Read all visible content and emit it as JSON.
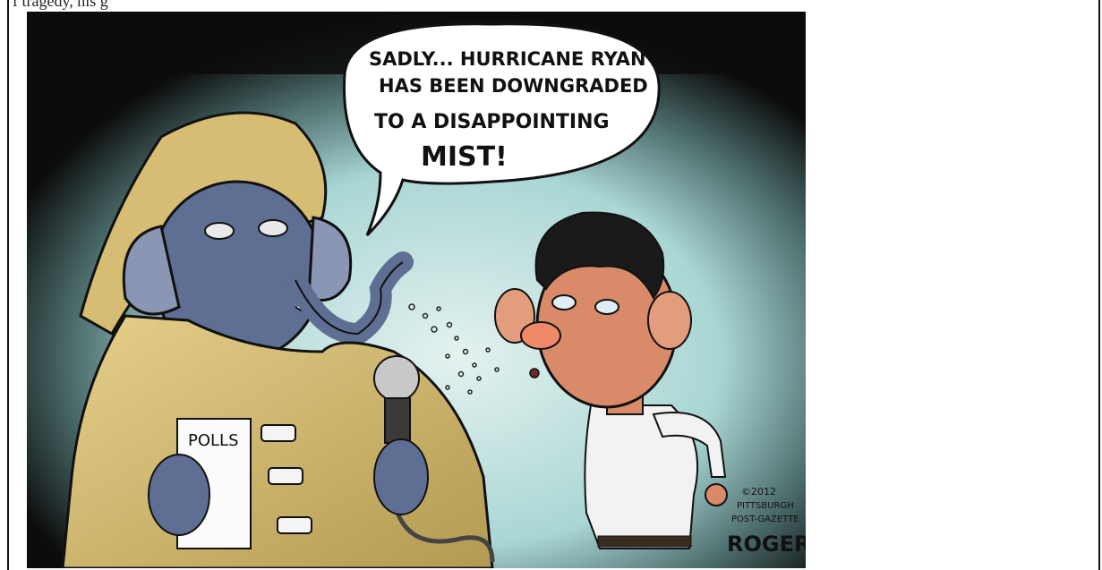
{
  "caption": "f tragedy, his g",
  "speech_bubble": {
    "lines": [
      "SADLY... HURRICANE RYAN",
      "HAS BEEN DOWNGRADED",
      "TO A DISAPPOINTING",
      "MIST!"
    ]
  },
  "sign": {
    "label": "POLLS"
  },
  "credit": {
    "copyright": "©2012",
    "publisher_line1": "PITTSBURGH",
    "publisher_line2": "POST-GAZETTE",
    "signature": "ROGERS"
  },
  "colors": {
    "sky_top": "#0c0c0c",
    "sky_glow": "#bfe3e2",
    "coat": "#d9c27a",
    "elephant": "#5f6f93",
    "shirt": "#f2f2f2",
    "face": "#d98a68",
    "hair": "#1a1a1a"
  }
}
